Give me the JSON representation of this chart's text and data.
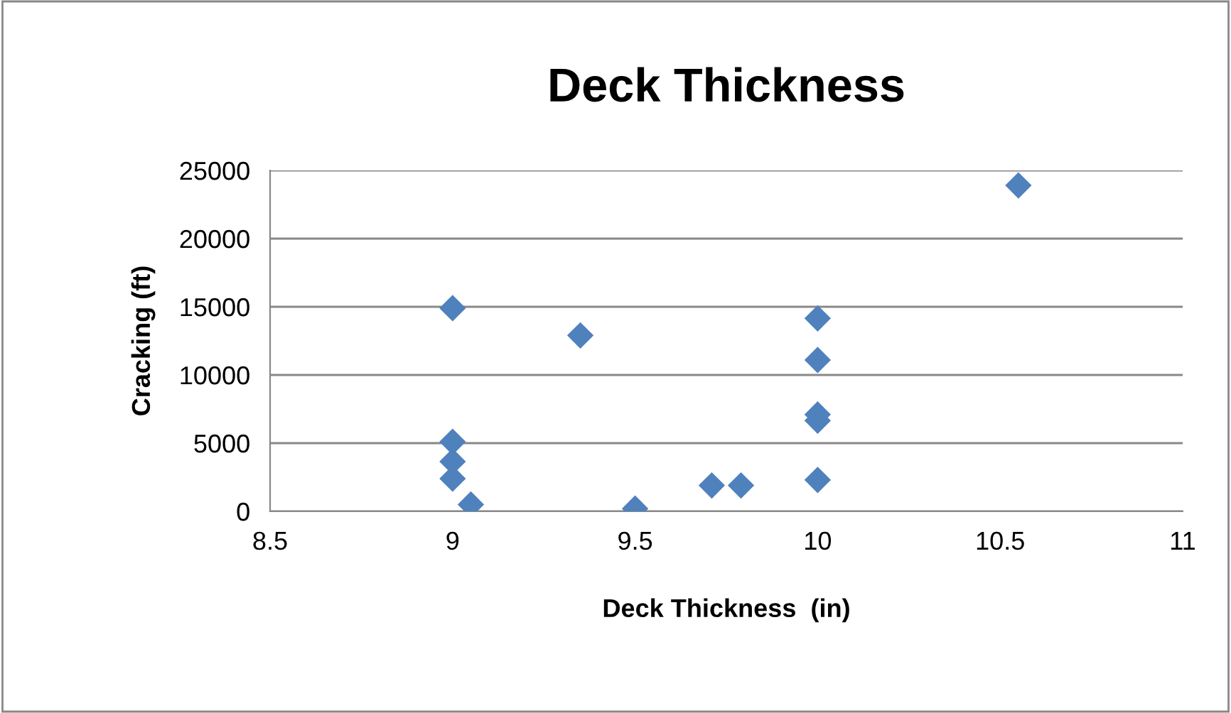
{
  "chart_data": {
    "type": "scatter",
    "title": "Deck Thickness",
    "xlabel": "Deck Thickness  (in)",
    "ylabel": "Cracking (ft)",
    "x": [
      9,
      9,
      9,
      9,
      9.05,
      9.35,
      9.5,
      9.71,
      9.79,
      10,
      10,
      10,
      10,
      10,
      10.55
    ],
    "values": [
      14900,
      5100,
      3650,
      2400,
      500,
      12900,
      200,
      1900,
      1900,
      14150,
      11100,
      7100,
      6650,
      2300,
      23900
    ],
    "color": "#4f81bd",
    "marker": "diamond",
    "xlim": [
      8.5,
      11
    ],
    "xticks": [
      8.5,
      9,
      9.5,
      10,
      10.5,
      11
    ],
    "ylim": [
      0,
      25000
    ],
    "yticks": [
      0,
      5000,
      10000,
      15000,
      20000,
      25000
    ],
    "grid": "y",
    "legend": false
  }
}
